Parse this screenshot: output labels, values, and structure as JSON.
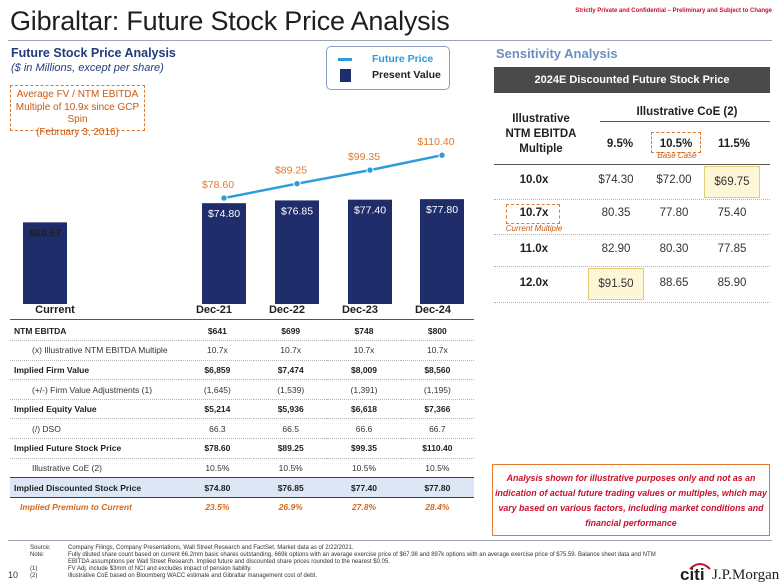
{
  "page": {
    "title": "Gibraltar: Future Stock Price Analysis",
    "confidential": "Strictly Private and Confidential – Preliminary and Subject to Change",
    "page_number": "10"
  },
  "left": {
    "heading": "Future Stock Price Analysis",
    "subheading": "($ in Millions, except per share)",
    "callout_lines": [
      "Average FV / NTM EBITDA",
      "Multiple of 10.9x since GCP Spin",
      "(February 3, 2016)"
    ]
  },
  "legend": {
    "future": "Future Price",
    "present": "Present Value"
  },
  "chart_data": {
    "type": "bar",
    "title": "Future Stock Price Analysis",
    "categories": [
      "Current",
      "Dec-21",
      "Dec-22",
      "Dec-23",
      "Dec-24"
    ],
    "series": [
      {
        "name": "Present Value",
        "type": "bar",
        "values": [
          60.57,
          74.8,
          76.85,
          77.4,
          77.8
        ],
        "labels": [
          "$60.57",
          "$74.80",
          "$76.85",
          "$77.40",
          "$77.80"
        ]
      },
      {
        "name": "Future Price",
        "type": "line",
        "values": [
          null,
          78.6,
          89.25,
          99.35,
          110.4
        ],
        "labels": [
          "",
          "$78.60",
          "$89.25",
          "$99.35",
          "$110.40"
        ]
      }
    ],
    "ylim": [
      0,
      115
    ],
    "colors": {
      "bar": "#1f2d6b",
      "line": "#2e9bdb",
      "text": "#1f1f1f"
    }
  },
  "table": {
    "rows": [
      {
        "label": "NTM EBITDA",
        "values": [
          "$641",
          "$699",
          "$748",
          "$800"
        ],
        "style": "bold"
      },
      {
        "label": "(x) Illustrative NTM EBITDA Multiple",
        "values": [
          "10.7x",
          "10.7x",
          "10.7x",
          "10.7x"
        ],
        "style": "indent"
      },
      {
        "label": "Implied Firm Value",
        "values": [
          "$6,859",
          "$7,474",
          "$8,009",
          "$8,560"
        ],
        "style": "bold"
      },
      {
        "label": "(+/-) Firm Value Adjustments (1)",
        "values": [
          "(1,645)",
          "(1,539)",
          "(1,391)",
          "(1,195)"
        ],
        "style": "indent"
      },
      {
        "label": "Implied Equity Value",
        "values": [
          "$5,214",
          "$5,936",
          "$6,618",
          "$7,366"
        ],
        "style": "bold"
      },
      {
        "label": "(/) DSO",
        "values": [
          "66.3",
          "66.5",
          "66.6",
          "66.7"
        ],
        "style": "indent"
      },
      {
        "label": "Implied Future Stock Price",
        "values": [
          "$78.60",
          "$89.25",
          "$99.35",
          "$110.40"
        ],
        "style": "bold"
      },
      {
        "label": "Illustrative CoE (2)",
        "values": [
          "10.5%",
          "10.5%",
          "10.5%",
          "10.5%"
        ],
        "style": "indent"
      },
      {
        "label": "Implied Discounted Stock Price",
        "values": [
          "$74.80",
          "$76.85",
          "$77.40",
          "$77.80"
        ],
        "style": "highlight"
      },
      {
        "label": "Implied Premium to Current",
        "values": [
          "23.5%",
          "26.9%",
          "27.8%",
          "28.4%"
        ],
        "style": "premium"
      }
    ]
  },
  "sensitivity": {
    "heading": "Sensitivity Analysis",
    "header_bar": "2024E Discounted Future Stock Price",
    "row_header_lines": [
      "Illustrative",
      "NTM EBITDA",
      "Multiple"
    ],
    "col_group": "Illustrative CoE (2)",
    "cols": [
      "9.5%",
      "10.5%",
      "11.5%"
    ],
    "base_case": "Base Case",
    "current_multiple": "Current Multiple",
    "rows": [
      {
        "multiple": "10.0x",
        "values": [
          "$74.30",
          "$72.00",
          "$69.75"
        ]
      },
      {
        "multiple": "10.7x",
        "values": [
          "80.35",
          "77.80",
          "75.40"
        ]
      },
      {
        "multiple": "11.0x",
        "values": [
          "82.90",
          "80.30",
          "77.85"
        ]
      },
      {
        "multiple": "12.0x",
        "values": [
          "$91.50",
          "88.65",
          "85.90"
        ]
      }
    ]
  },
  "disclaimer": "Analysis shown for illustrative purposes only and not as an indication of actual future trading values or multiples, which may vary based on various factors, including market conditions and financial performance",
  "footnotes": [
    {
      "key": "Source:",
      "text": "Company Filings, Company Presentations, Wall Street Research and FactSet. Market data as of 2/22/2021."
    },
    {
      "key": "Note:",
      "text": "Fully diluted share count based on current 66.2mm basic shares outstanding, 669k options with an average exercise price of $67.98 and 897k options with an average exercise price of $75.59. Balance sheet data and NTM"
    },
    {
      "key": "",
      "text": "EBITDA assumptions per Wall Street Research. Implied future and discounted share prices rounded to the nearest $0.05."
    },
    {
      "key": "(1)",
      "text": "FV Adj. include $3mm of NCI and excludes impact of pension liability."
    },
    {
      "key": "(2)",
      "text": "Illustrative CoE based on Bloomberg WACC estimate and Gibraltar management cost of debt."
    }
  ],
  "logos": {
    "citi": "citi",
    "jpm": "J.P.Morgan"
  }
}
